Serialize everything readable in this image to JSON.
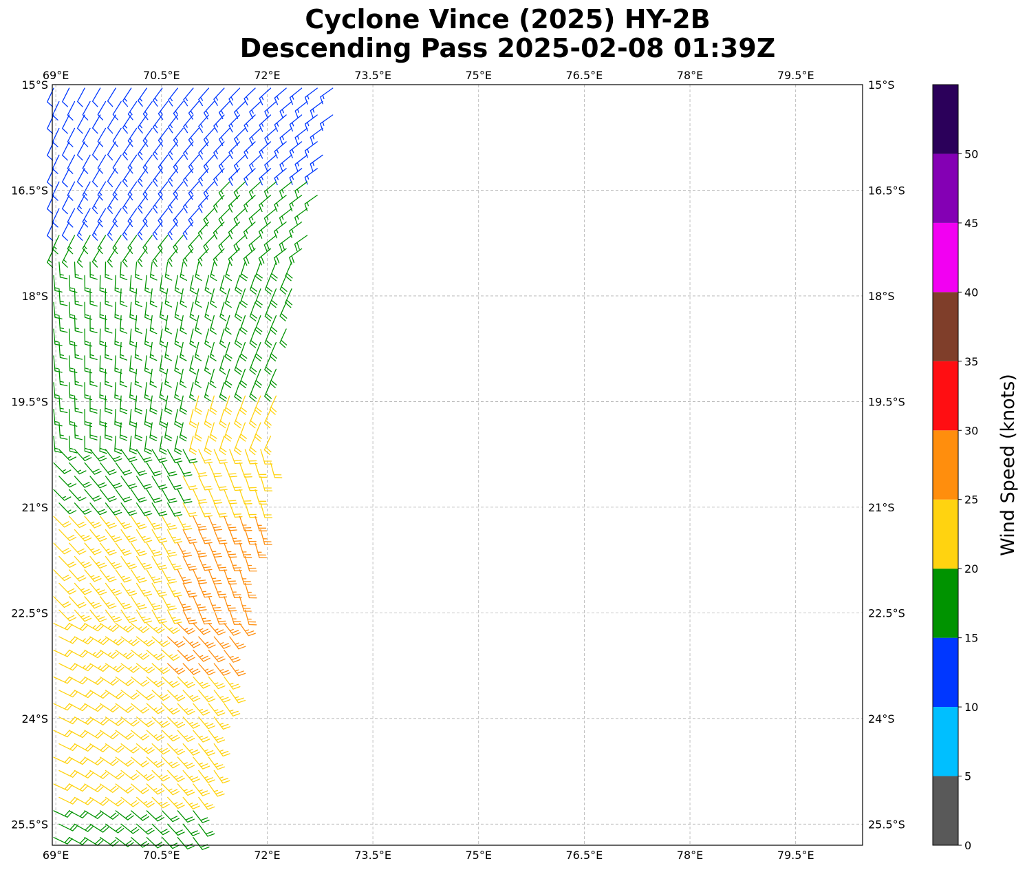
{
  "title": {
    "line1": "Cyclone Vince (2025) HY-2B",
    "line2": "Descending Pass 2025-02-08 01:39Z"
  },
  "map": {
    "lon_range": [
      68.95,
      80.45
    ],
    "lat_range": [
      -25.8,
      -15.0
    ],
    "lon_ticks": [
      69,
      70.5,
      72,
      73.5,
      75,
      76.5,
      78,
      79.5
    ],
    "lon_tick_labels": [
      "69°E",
      "70.5°E",
      "72°E",
      "73.5°E",
      "75°E",
      "76.5°E",
      "78°E",
      "79.5°E"
    ],
    "lat_ticks": [
      -15,
      -16.5,
      -18,
      -19.5,
      -21,
      -22.5,
      -24,
      -25.5
    ],
    "lat_tick_labels": [
      "15°S",
      "16.5°S",
      "18°S",
      "19.5°S",
      "21°S",
      "22.5°S",
      "24°S",
      "25.5°S"
    ],
    "grid": true,
    "grid_style": "dashed"
  },
  "colorbar": {
    "label": "Wind Speed (knots)",
    "tick_values": [
      0,
      5,
      10,
      15,
      20,
      25,
      30,
      35,
      40,
      45,
      50
    ],
    "bins": [
      {
        "min": 0,
        "max": 5,
        "color": "#595959"
      },
      {
        "min": 5,
        "max": 10,
        "color": "#00bfff"
      },
      {
        "min": 10,
        "max": 15,
        "color": "#0037ff"
      },
      {
        "min": 15,
        "max": 20,
        "color": "#009300"
      },
      {
        "min": 20,
        "max": 25,
        "color": "#ffd310"
      },
      {
        "min": 25,
        "max": 30,
        "color": "#ff8e0d"
      },
      {
        "min": 30,
        "max": 35,
        "color": "#ff0e12"
      },
      {
        "min": 35,
        "max": 40,
        "color": "#7f3e2a"
      },
      {
        "min": 40,
        "max": 45,
        "color": "#f200f2"
      },
      {
        "min": 45,
        "max": 50,
        "color": "#8400b4"
      },
      {
        "min": 50,
        "max": 55,
        "color": "#2b005a"
      }
    ]
  },
  "chart_data": {
    "type": "wind_barbs",
    "units": "knots",
    "swath": {
      "lon_min": 68.95,
      "lat_top": -15.0,
      "lat_bottom": -25.8,
      "east_edge": [
        {
          "lat": -15.2,
          "lon": 73.0
        },
        {
          "lat": -16.0,
          "lon": 72.9
        },
        {
          "lat": -17.0,
          "lon": 72.6
        },
        {
          "lat": -18.0,
          "lon": 72.4
        },
        {
          "lat": -19.0,
          "lon": 72.2
        },
        {
          "lat": -20.0,
          "lon": 72.1
        },
        {
          "lat": -21.0,
          "lon": 72.0
        },
        {
          "lat": -22.0,
          "lon": 71.8
        },
        {
          "lat": -23.0,
          "lon": 71.6
        },
        {
          "lat": -24.0,
          "lon": 71.4
        },
        {
          "lat": -25.0,
          "lon": 71.2
        },
        {
          "lat": -25.8,
          "lon": 71.1
        }
      ]
    },
    "speed_regions": [
      {
        "lat_min": -16.2,
        "lat_max": -15.0,
        "speed_west": 12,
        "speed_east": 14
      },
      {
        "lat_min": -17.0,
        "lat_max": -16.2,
        "speed_west": 12,
        "speed_east": 17
      },
      {
        "lat_min": -19.4,
        "lat_max": -17.0,
        "speed_west": 16,
        "speed_east": 18
      },
      {
        "lat_min": -21.0,
        "lat_max": -19.4,
        "speed_west": 17,
        "speed_east": 22
      },
      {
        "lat_min": -23.4,
        "lat_max": -21.0,
        "speed_west": 22,
        "speed_east": 27
      },
      {
        "lat_min": -25.3,
        "lat_max": -23.4,
        "speed_west": 22,
        "speed_east": 23
      },
      {
        "lat_min": -25.8,
        "lat_max": -25.3,
        "speed_west": 18,
        "speed_east": 18
      }
    ],
    "direction_regions": [
      {
        "lat_min": -17.5,
        "lat_max": -15.0,
        "wind_from_deg": 220
      },
      {
        "lat_min": -20.0,
        "lat_max": -17.5,
        "wind_from_deg": 190
      },
      {
        "lat_min": -22.5,
        "lat_max": -20.0,
        "wind_from_deg": 150
      },
      {
        "lat_min": -25.8,
        "lat_max": -22.5,
        "wind_from_deg": 130
      }
    ]
  }
}
